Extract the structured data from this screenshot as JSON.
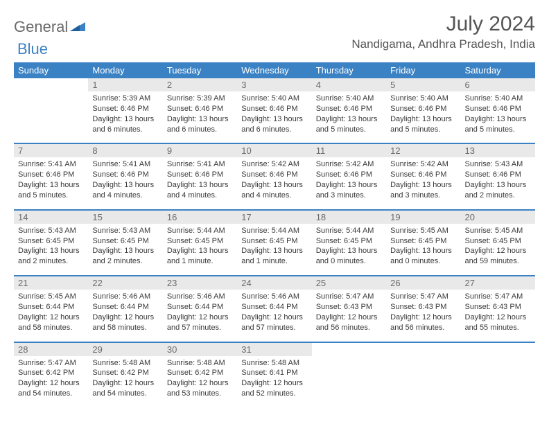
{
  "brand": {
    "part1": "General",
    "part2": "Blue",
    "color_gray": "#6a6a6a",
    "color_blue": "#3b82c4"
  },
  "title": "July 2024",
  "location": "Nandigama, Andhra Pradesh, India",
  "dow": [
    "Sunday",
    "Monday",
    "Tuesday",
    "Wednesday",
    "Thursday",
    "Friday",
    "Saturday"
  ],
  "header_bg": "#3b82c4",
  "header_fg": "#ffffff",
  "daynum_bg": "#e9e9e9",
  "start_offset": 1,
  "days": [
    {
      "n": 1,
      "sr": "5:39 AM",
      "ss": "6:46 PM",
      "dl": "13 hours and 6 minutes."
    },
    {
      "n": 2,
      "sr": "5:39 AM",
      "ss": "6:46 PM",
      "dl": "13 hours and 6 minutes."
    },
    {
      "n": 3,
      "sr": "5:40 AM",
      "ss": "6:46 PM",
      "dl": "13 hours and 6 minutes."
    },
    {
      "n": 4,
      "sr": "5:40 AM",
      "ss": "6:46 PM",
      "dl": "13 hours and 5 minutes."
    },
    {
      "n": 5,
      "sr": "5:40 AM",
      "ss": "6:46 PM",
      "dl": "13 hours and 5 minutes."
    },
    {
      "n": 6,
      "sr": "5:40 AM",
      "ss": "6:46 PM",
      "dl": "13 hours and 5 minutes."
    },
    {
      "n": 7,
      "sr": "5:41 AM",
      "ss": "6:46 PM",
      "dl": "13 hours and 5 minutes."
    },
    {
      "n": 8,
      "sr": "5:41 AM",
      "ss": "6:46 PM",
      "dl": "13 hours and 4 minutes."
    },
    {
      "n": 9,
      "sr": "5:41 AM",
      "ss": "6:46 PM",
      "dl": "13 hours and 4 minutes."
    },
    {
      "n": 10,
      "sr": "5:42 AM",
      "ss": "6:46 PM",
      "dl": "13 hours and 4 minutes."
    },
    {
      "n": 11,
      "sr": "5:42 AM",
      "ss": "6:46 PM",
      "dl": "13 hours and 3 minutes."
    },
    {
      "n": 12,
      "sr": "5:42 AM",
      "ss": "6:46 PM",
      "dl": "13 hours and 3 minutes."
    },
    {
      "n": 13,
      "sr": "5:43 AM",
      "ss": "6:46 PM",
      "dl": "13 hours and 2 minutes."
    },
    {
      "n": 14,
      "sr": "5:43 AM",
      "ss": "6:45 PM",
      "dl": "13 hours and 2 minutes."
    },
    {
      "n": 15,
      "sr": "5:43 AM",
      "ss": "6:45 PM",
      "dl": "13 hours and 2 minutes."
    },
    {
      "n": 16,
      "sr": "5:44 AM",
      "ss": "6:45 PM",
      "dl": "13 hours and 1 minute."
    },
    {
      "n": 17,
      "sr": "5:44 AM",
      "ss": "6:45 PM",
      "dl": "13 hours and 1 minute."
    },
    {
      "n": 18,
      "sr": "5:44 AM",
      "ss": "6:45 PM",
      "dl": "13 hours and 0 minutes."
    },
    {
      "n": 19,
      "sr": "5:45 AM",
      "ss": "6:45 PM",
      "dl": "13 hours and 0 minutes."
    },
    {
      "n": 20,
      "sr": "5:45 AM",
      "ss": "6:45 PM",
      "dl": "12 hours and 59 minutes."
    },
    {
      "n": 21,
      "sr": "5:45 AM",
      "ss": "6:44 PM",
      "dl": "12 hours and 58 minutes."
    },
    {
      "n": 22,
      "sr": "5:46 AM",
      "ss": "6:44 PM",
      "dl": "12 hours and 58 minutes."
    },
    {
      "n": 23,
      "sr": "5:46 AM",
      "ss": "6:44 PM",
      "dl": "12 hours and 57 minutes."
    },
    {
      "n": 24,
      "sr": "5:46 AM",
      "ss": "6:44 PM",
      "dl": "12 hours and 57 minutes."
    },
    {
      "n": 25,
      "sr": "5:47 AM",
      "ss": "6:43 PM",
      "dl": "12 hours and 56 minutes."
    },
    {
      "n": 26,
      "sr": "5:47 AM",
      "ss": "6:43 PM",
      "dl": "12 hours and 56 minutes."
    },
    {
      "n": 27,
      "sr": "5:47 AM",
      "ss": "6:43 PM",
      "dl": "12 hours and 55 minutes."
    },
    {
      "n": 28,
      "sr": "5:47 AM",
      "ss": "6:42 PM",
      "dl": "12 hours and 54 minutes."
    },
    {
      "n": 29,
      "sr": "5:48 AM",
      "ss": "6:42 PM",
      "dl": "12 hours and 54 minutes."
    },
    {
      "n": 30,
      "sr": "5:48 AM",
      "ss": "6:42 PM",
      "dl": "12 hours and 53 minutes."
    },
    {
      "n": 31,
      "sr": "5:48 AM",
      "ss": "6:41 PM",
      "dl": "12 hours and 52 minutes."
    }
  ],
  "labels": {
    "sunrise": "Sunrise: ",
    "sunset": "Sunset: ",
    "daylight": "Daylight: "
  }
}
